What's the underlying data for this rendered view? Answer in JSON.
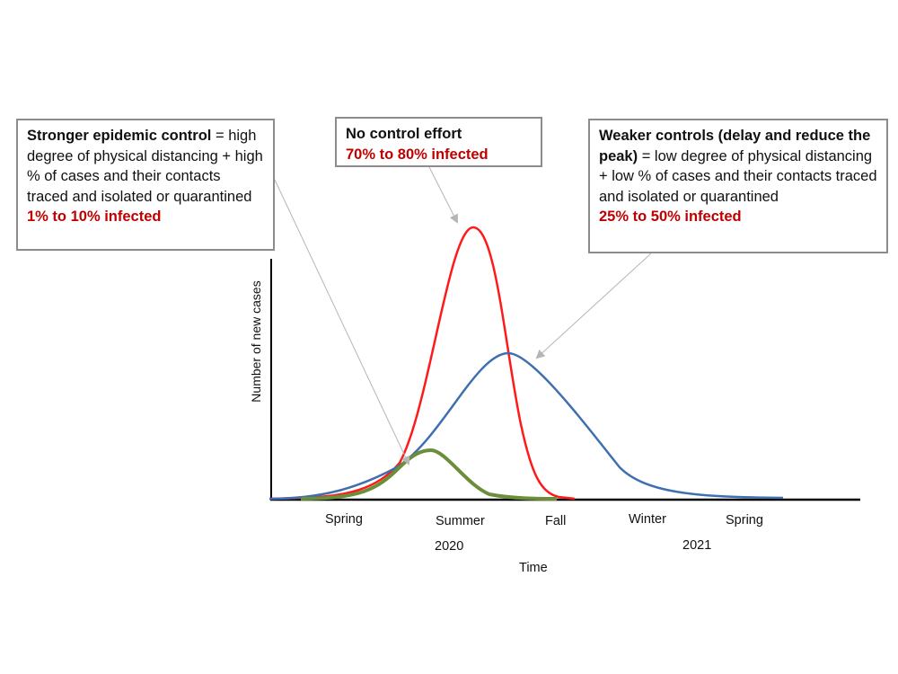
{
  "boxes": {
    "stronger": {
      "title": "Stronger epidemic control",
      "eq": " = ",
      "body": "high degree of physical distancing + high % of cases and their contacts traced and isolated or quarantined",
      "result": "1% to 10% infected"
    },
    "none": {
      "title": "No control effort",
      "result": "70% to 80% infected"
    },
    "weaker": {
      "title": "Weaker controls (delay and reduce the peak)",
      "eq": " = ",
      "body": "low degree of physical distancing + low % of cases and their contacts traced and isolated or quarantined",
      "result": "25% to 50% infected"
    }
  },
  "axes": {
    "ylabel": "Number of new cases",
    "xlabel": "Time",
    "seasons": [
      "Spring",
      "Summer",
      "Fall",
      "Winter",
      "Spring"
    ],
    "years": [
      "2020",
      "2021"
    ]
  },
  "colors": {
    "no_control": "#ff1a1a",
    "weaker": "#3f6fb0",
    "stronger": "#6b8e3a",
    "result_text": "#c00000",
    "arrow": "#b5b5b5"
  }
}
